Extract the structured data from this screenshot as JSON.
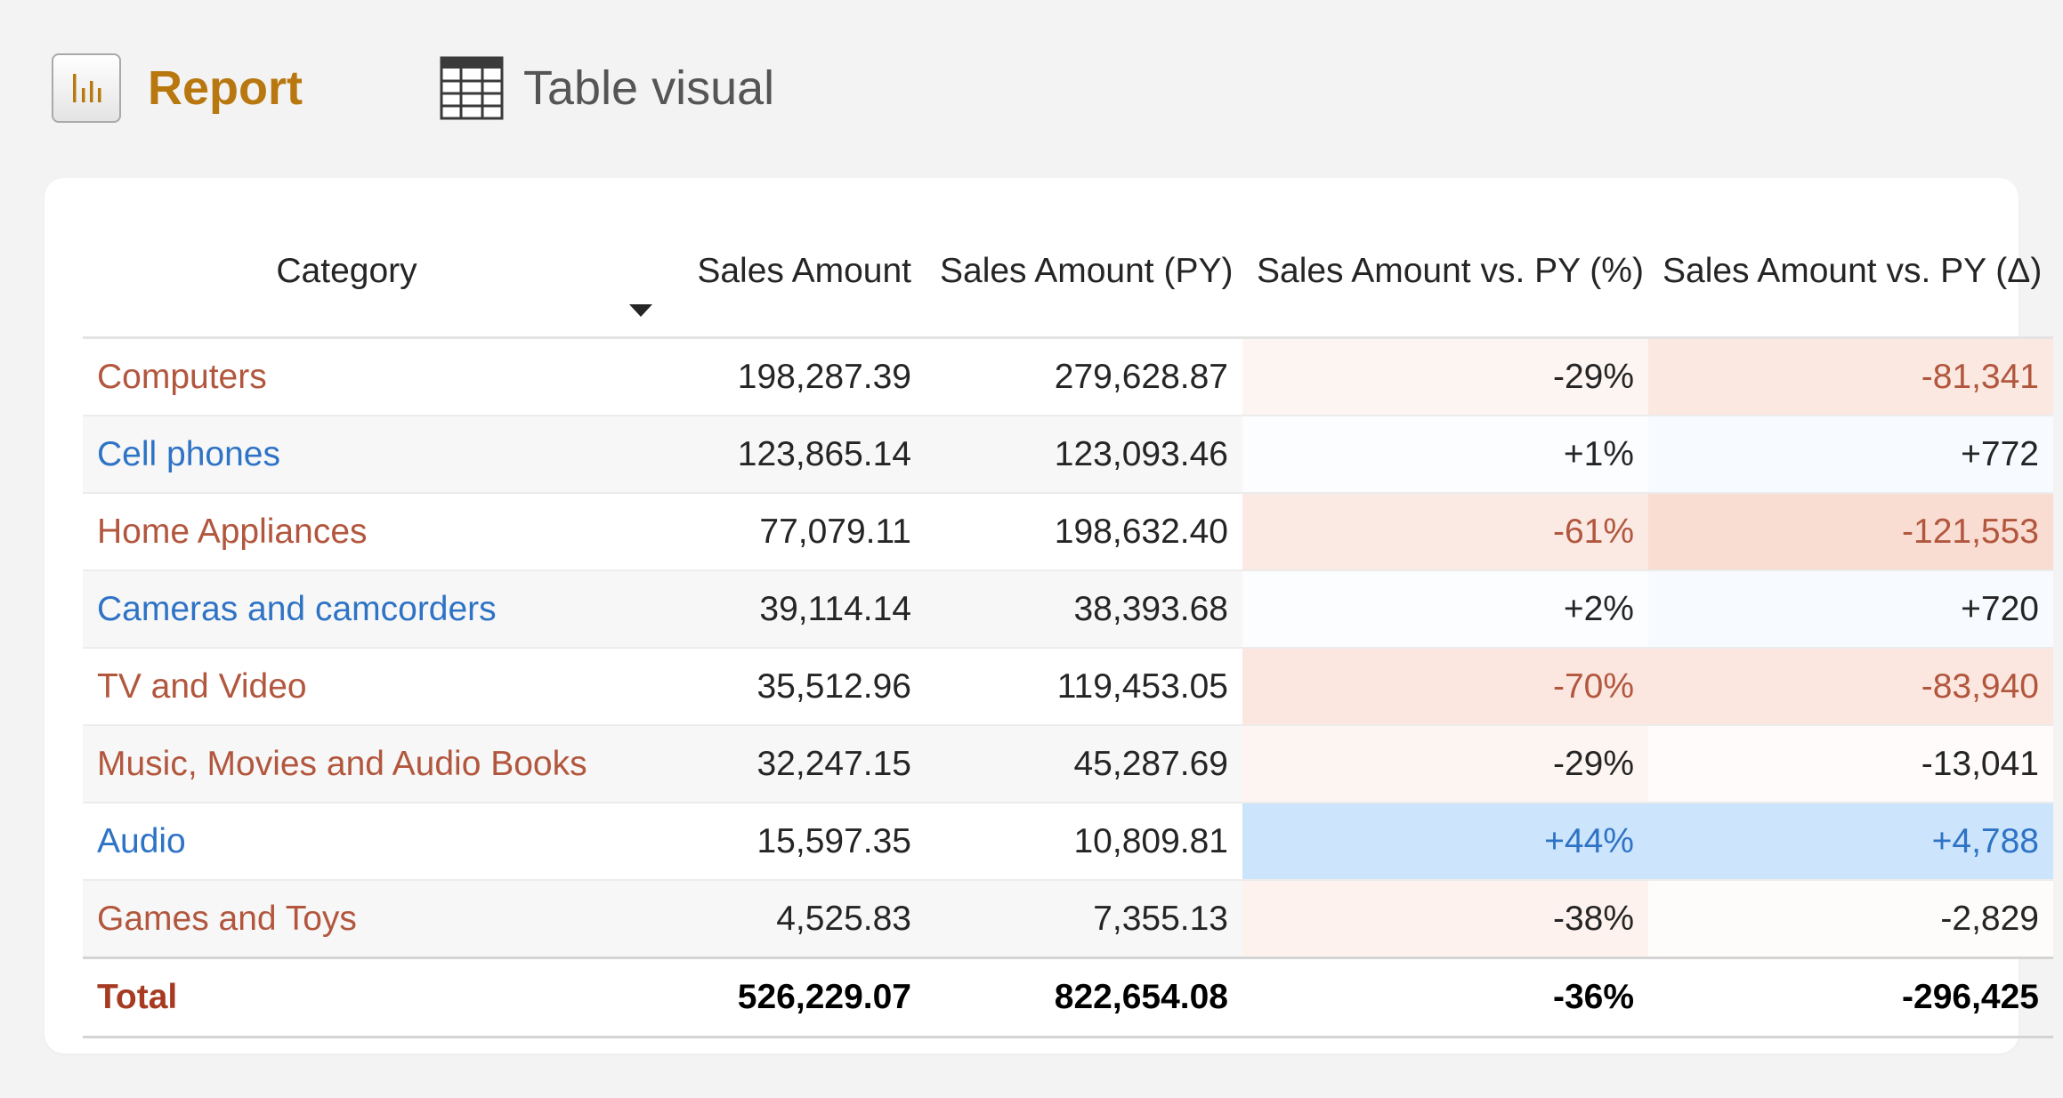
{
  "header": {
    "report_label": "Report",
    "visual_label": "Table visual",
    "report_icon": "bar-chart-icon",
    "visual_icon": "table-grid-icon"
  },
  "colors": {
    "report_accent": "#b8780f",
    "negative_text": "#b2573e",
    "positive_text": "#2e73c5",
    "total_label": "#a63b22",
    "negative_fill": "#f5c7b7",
    "positive_fill": "#cce5fc"
  },
  "table": {
    "columns": [
      "Category",
      "Sales Amount",
      "Sales Amount (PY)",
      "Sales Amount vs. PY (%)",
      "Sales Amount vs. PY (Δ)"
    ],
    "sorted_column": "Sales Amount",
    "sort_direction": "descending",
    "rows": [
      {
        "category": "Computers",
        "sales": "198,287.39",
        "sales_py": "279,628.87",
        "vs_pct": "-29%",
        "vs_delta": "-81,341",
        "trend": "negative",
        "pct_level": 0.29,
        "delta_level": 0.67,
        "pct_text": "plain",
        "delta_text": "negative"
      },
      {
        "category": "Cell phones",
        "sales": "123,865.14",
        "sales_py": "123,093.46",
        "vs_pct": "+1%",
        "vs_delta": "+772",
        "trend": "positive",
        "pct_level": 0.0,
        "delta_level": 0.16,
        "pct_text": "plain",
        "delta_text": "plain"
      },
      {
        "category": "Home Appliances",
        "sales": "77,079.11",
        "sales_py": "198,632.40",
        "vs_pct": "-61%",
        "vs_delta": "-121,553",
        "trend": "negative",
        "pct_level": 0.61,
        "delta_level": 1.0,
        "pct_text": "negative",
        "delta_text": "negative"
      },
      {
        "category": "Cameras and camcorders",
        "sales": "39,114.14",
        "sales_py": "38,393.68",
        "vs_pct": "+2%",
        "vs_delta": "+720",
        "trend": "positive",
        "pct_level": 0.05,
        "delta_level": 0.15,
        "pct_text": "plain",
        "delta_text": "plain"
      },
      {
        "category": "TV and Video",
        "sales": "35,512.96",
        "sales_py": "119,453.05",
        "vs_pct": "-70%",
        "vs_delta": "-83,940",
        "trend": "negative",
        "pct_level": 0.7,
        "delta_level": 0.69,
        "pct_text": "negative",
        "delta_text": "negative"
      },
      {
        "category": "Music, Movies and Audio Books",
        "sales": "32,247.15",
        "sales_py": "45,287.69",
        "vs_pct": "-29%",
        "vs_delta": "-13,041",
        "trend": "negative",
        "pct_level": 0.29,
        "delta_level": 0.11,
        "pct_text": "plain",
        "delta_text": "plain"
      },
      {
        "category": "Audio",
        "sales": "15,597.35",
        "sales_py": "10,809.81",
        "vs_pct": "+44%",
        "vs_delta": "+4,788",
        "trend": "positive",
        "pct_level": 1.0,
        "delta_level": 1.0,
        "pct_text": "positive",
        "delta_text": "positive"
      },
      {
        "category": "Games and Toys",
        "sales": "4,525.83",
        "sales_py": "7,355.13",
        "vs_pct": "-38%",
        "vs_delta": "-2,829",
        "trend": "negative",
        "pct_level": 0.38,
        "delta_level": 0.0,
        "pct_text": "plain",
        "delta_text": "plain"
      }
    ],
    "total": {
      "label": "Total",
      "sales": "526,229.07",
      "sales_py": "822,654.08",
      "vs_pct": "-36%",
      "vs_delta": "-296,425"
    }
  }
}
